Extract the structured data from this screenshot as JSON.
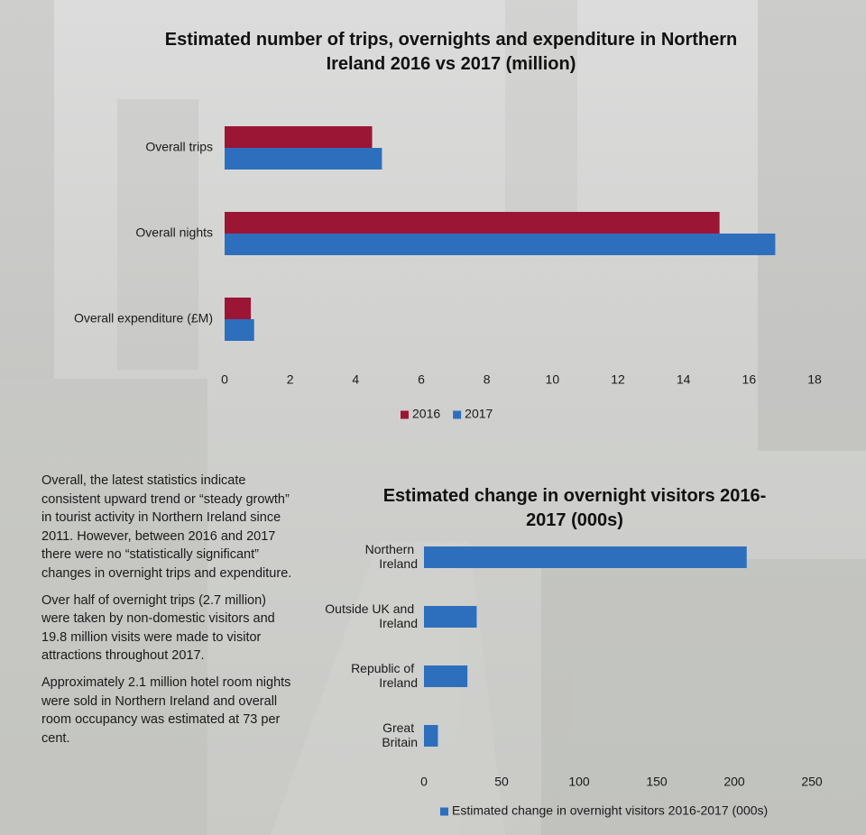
{
  "chart_data": [
    {
      "type": "bar",
      "orientation": "horizontal",
      "title": "Estimated number of trips, overnights and expenditure in Northern Ireland 2016 vs 2017 (million)",
      "categories": [
        "Overall trips",
        "Overall nights",
        "Overall expenditure (£M)"
      ],
      "series": [
        {
          "name": "2016",
          "color": "#9b1535",
          "values": [
            4.5,
            15.1,
            0.8
          ]
        },
        {
          "name": "2017",
          "color": "#2e6fbd",
          "values": [
            4.8,
            16.8,
            0.9
          ]
        }
      ],
      "xlim": [
        0,
        18
      ],
      "xticks": [
        0,
        2,
        4,
        6,
        8,
        10,
        12,
        14,
        16,
        18
      ],
      "grid": false,
      "legend": "bottom"
    },
    {
      "type": "bar",
      "orientation": "horizontal",
      "title": "Estimated change in overnight visitors 2016-2017 (000s)",
      "categories": [
        "Northern Ireland",
        "Outside UK and Ireland",
        "Republic of Ireland",
        "Great Britain"
      ],
      "series": [
        {
          "name": "Estimated change in overnight visitors 2016-2017 (000s)",
          "color": "#2e6fbd",
          "values": [
            208,
            34,
            28,
            9
          ]
        }
      ],
      "xlim": [
        0,
        250
      ],
      "xticks": [
        0,
        50,
        100,
        150,
        200,
        250
      ],
      "grid": false,
      "legend": "bottom"
    }
  ],
  "paragraphs": [
    "Overall, the latest statistics indicate consistent upward trend or “steady growth” in tourist activity in Northern Ireland since 2011. However, between 2016 and 2017 there were no “statistically significant” changes in overnight trips and expenditure.",
    "Over half of overnight trips (2.7 million) were taken by non-domestic visitors and 19.8 million visits were made to visitor attractions throughout 2017.",
    "Approximately 2.1 million hotel room nights were sold in Northern Ireland and overall room occupancy was estimated at 73 per cent."
  ]
}
